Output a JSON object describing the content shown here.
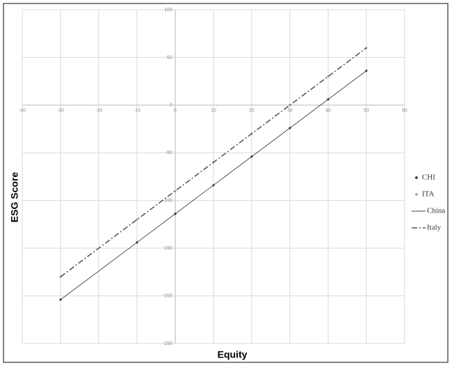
{
  "chart_data": {
    "type": "scatter",
    "x_label": "Equity",
    "y_label": "ESG Score",
    "x": [
      -30,
      -10,
      0,
      10,
      20,
      30,
      40,
      50
    ],
    "series": [
      {
        "name": "CHI",
        "color": "#404040",
        "style": "markers",
        "values": [
          -204,
          -144,
          -114,
          -84,
          -54,
          -24,
          6,
          36
        ]
      },
      {
        "name": "ITA",
        "color": "#a6a6a6",
        "style": "markers",
        "values": [
          -180,
          -120,
          -90,
          -60,
          -30,
          0,
          30,
          60
        ]
      },
      {
        "name": "China",
        "color": "#404040",
        "style": "solid",
        "values": [
          -204,
          -144,
          -114,
          -84,
          -54,
          -24,
          6,
          36
        ]
      },
      {
        "name": "Italy",
        "color": "#595959",
        "style": "dashdot",
        "values": [
          -180,
          -120,
          -90,
          -60,
          -30,
          0,
          30,
          60
        ]
      }
    ],
    "xlim": [
      -40,
      60
    ],
    "xticks": [
      -40,
      -30,
      -20,
      -10,
      0,
      10,
      20,
      30,
      40,
      50,
      60
    ],
    "ylim": [
      -250,
      100
    ],
    "yticks": [
      -250,
      -200,
      -150,
      -100,
      -50,
      0,
      50,
      100
    ],
    "grid": true,
    "legend": "right"
  }
}
